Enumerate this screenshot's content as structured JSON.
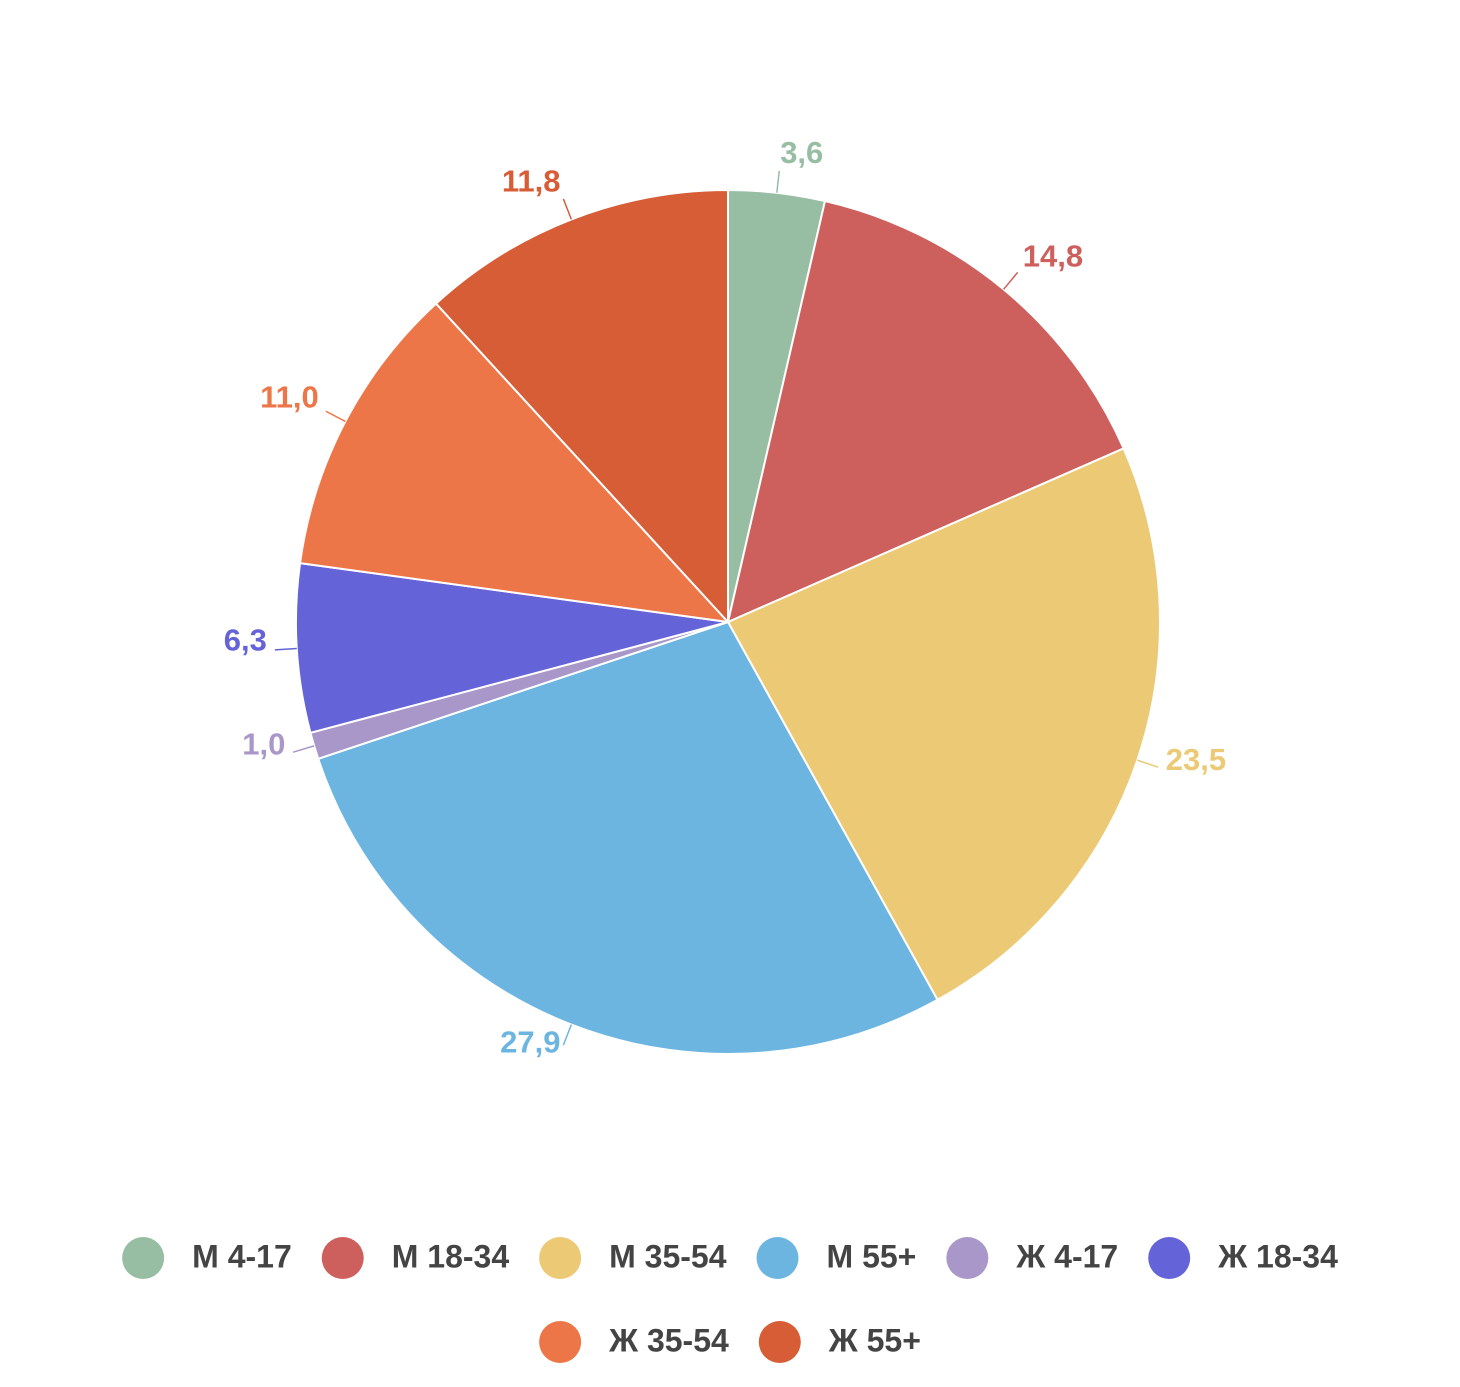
{
  "chart_data": {
    "type": "pie",
    "categories": [
      "М 4-17",
      "М 18-34",
      "М 35-54",
      "М 55+",
      "Ж 4-17",
      "Ж 18-34",
      "Ж 35-54",
      "Ж 55+"
    ],
    "values": [
      3.6,
      14.8,
      23.5,
      27.9,
      1.0,
      6.3,
      11.0,
      11.8
    ],
    "value_labels": [
      "3,6",
      "14,8",
      "23,5",
      "27,9",
      "1,0",
      "6,3",
      "11,0",
      "11,8"
    ],
    "colors": [
      "#97bda2",
      "#cd5f5c",
      "#ecc974",
      "#6cb5e0",
      "#a897c8",
      "#6464d8",
      "#ed7649",
      "#d65d36"
    ],
    "legend": "bottom"
  }
}
